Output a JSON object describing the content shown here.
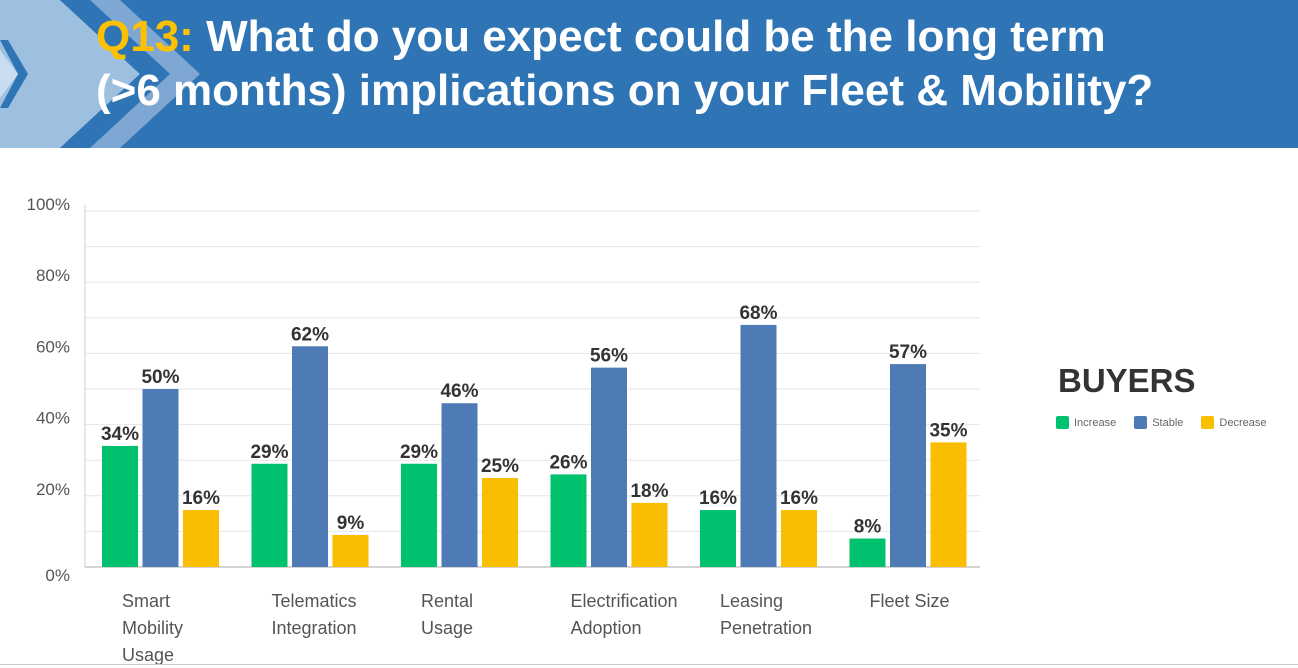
{
  "header": {
    "question_number": "Q13:",
    "title_line1": "What do you expect could be the long term",
    "title_line2": "(>6 months) implications on your Fleet & Mobility?"
  },
  "colors": {
    "banner": "#2f75b5",
    "accent": "#ffc000",
    "increase": "#00c16e",
    "stable": "#4e7bb6",
    "decrease": "#f9be00"
  },
  "chart_data": {
    "type": "bar",
    "title": "BUYERS",
    "categories": [
      [
        "Smart",
        "Mobility",
        "Usage"
      ],
      [
        "Telematics",
        "Integration"
      ],
      [
        "Rental",
        "Usage"
      ],
      [
        "Electrification",
        "Adoption"
      ],
      [
        "Leasing",
        "Penetration"
      ],
      [
        "Fleet Size"
      ]
    ],
    "series": [
      {
        "name": "Increase",
        "values": [
          34,
          29,
          29,
          26,
          16,
          8
        ]
      },
      {
        "name": "Stable",
        "values": [
          50,
          62,
          46,
          56,
          68,
          57
        ]
      },
      {
        "name": "Decrease",
        "values": [
          16,
          9,
          25,
          18,
          16,
          35
        ]
      }
    ],
    "ylim": [
      0,
      100
    ],
    "yticks": [
      "0%",
      "20%",
      "40%",
      "60%",
      "80%",
      "100%"
    ],
    "grid": true,
    "legend_placement": "right"
  }
}
